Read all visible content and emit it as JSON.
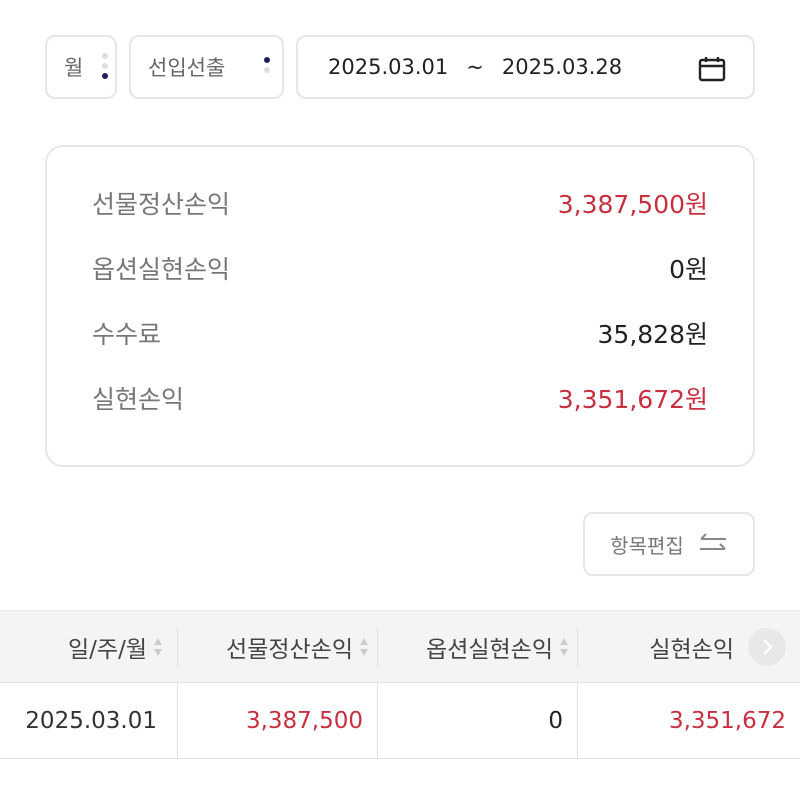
{
  "filters": {
    "period": "월",
    "type": "선입선출",
    "date_from": "2025.03.01",
    "date_sep": "~",
    "date_to": "2025.03.28"
  },
  "summary": [
    {
      "label": "선물정산손익",
      "value": "3,387,500원",
      "color": "#c8303f"
    },
    {
      "label": "옵션실현손익",
      "value": "0원",
      "color": "#222222"
    },
    {
      "label": "수수료",
      "value": "35,828원",
      "color": "#222222"
    },
    {
      "label": "실현손익",
      "value": "3,351,672원",
      "color": "#c8303f"
    }
  ],
  "edit_button": {
    "label": "항목편집",
    "icon": "swap-arrows-icon"
  },
  "table": {
    "headers": [
      "일/주/월",
      "선물정산손익",
      "옵션실현손익",
      "실현손익"
    ],
    "rows": [
      [
        "2025.03.01",
        "3,387,500",
        "0",
        "3,351,672"
      ]
    ]
  },
  "colors": {
    "accent_red": "#c8303f",
    "dot_active": "#1e2060"
  }
}
